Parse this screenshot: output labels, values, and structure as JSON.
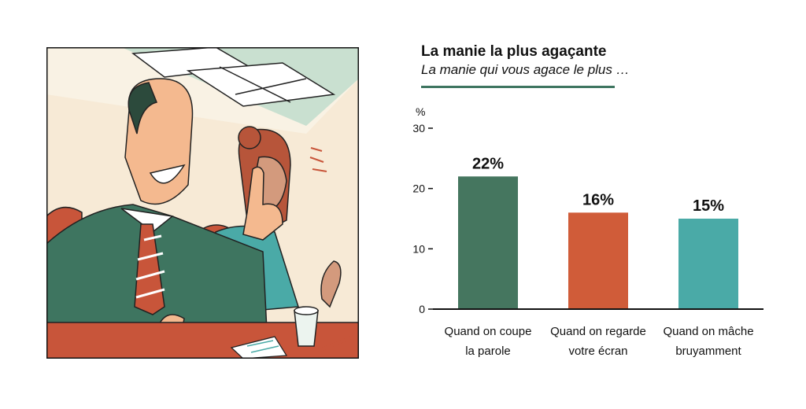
{
  "colors": {
    "green": "#45765f",
    "orange": "#d05c39",
    "teal": "#4aaaa7",
    "title_rule": "#3e7560",
    "axis": "#111111"
  },
  "chart_data": {
    "type": "bar",
    "title": "La manie la plus agaçante",
    "subtitle": "La manie qui vous agace le plus …",
    "ylabel": "%",
    "xlabel": "",
    "ylim": [
      0,
      30
    ],
    "yticks": [
      0,
      10,
      20,
      30
    ],
    "grid": false,
    "categories": [
      [
        "Quand on coupe",
        "la parole"
      ],
      [
        "Quand on regarde",
        "votre écran"
      ],
      [
        "Quand on mâche",
        "bruyamment"
      ]
    ],
    "values": [
      22,
      16,
      15
    ],
    "value_labels": [
      "22%",
      "16%",
      "15%"
    ],
    "bar_colors": [
      "#45765f",
      "#d05c39",
      "#4aaaa7"
    ]
  }
}
